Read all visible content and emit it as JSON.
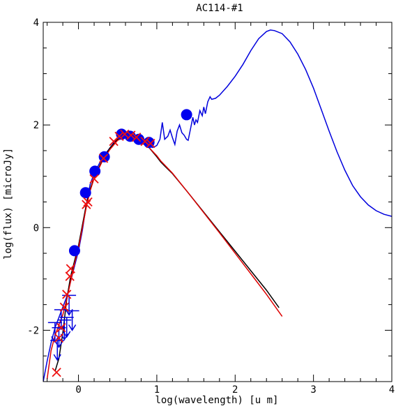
{
  "chart_data": {
    "type": "line",
    "title": "AC114-#1",
    "xlabel": "log(wavelength) [u m]",
    "ylabel": "log(flux) [microJy]",
    "xlim": [
      -0.45,
      4.0
    ],
    "ylim": [
      -3.0,
      4.0
    ],
    "x_ticks": [
      0,
      1,
      2,
      3,
      4
    ],
    "y_ticks": [
      -2,
      0,
      2,
      4
    ],
    "grid": false,
    "colors": {
      "model": "#0000dd",
      "photosphere_black": "#000000",
      "photosphere_red": "#dd0000",
      "points": "#0000ee",
      "crosses": "#ee1111"
    },
    "series": [
      {
        "color_key": "model",
        "points": [
          [
            -0.45,
            -3.0
          ],
          [
            -0.4,
            -2.6
          ],
          [
            -0.35,
            -2.25
          ],
          [
            -0.3,
            -1.95
          ],
          [
            -0.25,
            -1.75
          ],
          [
            -0.2,
            -1.55
          ],
          [
            -0.15,
            -1.35
          ],
          [
            -0.1,
            -1.05
          ],
          [
            -0.05,
            -0.75
          ],
          [
            0.0,
            -0.45
          ],
          [
            0.05,
            -0.05
          ],
          [
            0.1,
            0.45
          ],
          [
            0.15,
            0.85
          ],
          [
            0.2,
            1.05
          ],
          [
            0.3,
            1.35
          ],
          [
            0.4,
            1.55
          ],
          [
            0.5,
            1.75
          ],
          [
            0.55,
            1.8
          ],
          [
            0.6,
            1.8
          ],
          [
            0.7,
            1.75
          ],
          [
            0.8,
            1.66
          ],
          [
            0.9,
            1.58
          ],
          [
            0.95,
            1.56
          ],
          [
            1.0,
            1.6
          ],
          [
            1.04,
            1.72
          ],
          [
            1.07,
            2.05
          ],
          [
            1.1,
            1.72
          ],
          [
            1.14,
            1.78
          ],
          [
            1.17,
            1.9
          ],
          [
            1.2,
            1.75
          ],
          [
            1.23,
            1.62
          ],
          [
            1.26,
            1.88
          ],
          [
            1.29,
            2.0
          ],
          [
            1.32,
            1.85
          ],
          [
            1.35,
            1.8
          ],
          [
            1.38,
            1.72
          ],
          [
            1.4,
            1.7
          ],
          [
            1.43,
            1.92
          ],
          [
            1.46,
            2.15
          ],
          [
            1.48,
            2.0
          ],
          [
            1.5,
            2.1
          ],
          [
            1.52,
            2.05
          ],
          [
            1.55,
            2.28
          ],
          [
            1.58,
            2.18
          ],
          [
            1.6,
            2.35
          ],
          [
            1.62,
            2.22
          ],
          [
            1.65,
            2.45
          ],
          [
            1.68,
            2.55
          ],
          [
            1.7,
            2.5
          ],
          [
            1.75,
            2.52
          ],
          [
            1.8,
            2.58
          ],
          [
            1.9,
            2.75
          ],
          [
            2.0,
            2.95
          ],
          [
            2.1,
            3.18
          ],
          [
            2.2,
            3.45
          ],
          [
            2.3,
            3.68
          ],
          [
            2.4,
            3.82
          ],
          [
            2.45,
            3.85
          ],
          [
            2.5,
            3.84
          ],
          [
            2.6,
            3.78
          ],
          [
            2.7,
            3.62
          ],
          [
            2.8,
            3.38
          ],
          [
            2.9,
            3.08
          ],
          [
            3.0,
            2.72
          ],
          [
            3.1,
            2.3
          ],
          [
            3.2,
            1.88
          ],
          [
            3.3,
            1.48
          ],
          [
            3.4,
            1.12
          ],
          [
            3.5,
            0.82
          ],
          [
            3.6,
            0.6
          ],
          [
            3.7,
            0.44
          ],
          [
            3.8,
            0.33
          ],
          [
            3.9,
            0.26
          ],
          [
            4.0,
            0.22
          ]
        ]
      },
      {
        "color_key": "photosphere_black",
        "points": [
          [
            -0.3,
            -2.8
          ],
          [
            -0.25,
            -2.55
          ],
          [
            -0.2,
            -2.05
          ],
          [
            -0.15,
            -1.4
          ],
          [
            -0.1,
            -0.95
          ],
          [
            -0.05,
            -0.65
          ],
          [
            0.0,
            -0.35
          ],
          [
            0.05,
            0.05
          ],
          [
            0.1,
            0.45
          ],
          [
            0.15,
            0.75
          ],
          [
            0.2,
            0.98
          ],
          [
            0.3,
            1.3
          ],
          [
            0.4,
            1.55
          ],
          [
            0.5,
            1.72
          ],
          [
            0.6,
            1.78
          ],
          [
            0.7,
            1.74
          ],
          [
            0.8,
            1.66
          ],
          [
            0.9,
            1.56
          ],
          [
            1.0,
            1.38
          ],
          [
            1.05,
            1.28
          ],
          [
            1.1,
            1.2
          ],
          [
            1.2,
            1.05
          ],
          [
            1.4,
            0.68
          ],
          [
            1.6,
            0.3
          ],
          [
            1.8,
            -0.08
          ],
          [
            2.0,
            -0.46
          ],
          [
            2.2,
            -0.84
          ],
          [
            2.4,
            -1.22
          ],
          [
            2.56,
            -1.56
          ]
        ]
      },
      {
        "color_key": "photosphere_red",
        "points": [
          [
            -0.4,
            -2.95
          ],
          [
            -0.35,
            -2.4
          ],
          [
            -0.3,
            -2.1
          ],
          [
            -0.25,
            -1.9
          ],
          [
            -0.2,
            -1.7
          ],
          [
            -0.15,
            -1.4
          ],
          [
            -0.1,
            -1.05
          ],
          [
            -0.05,
            -0.7
          ],
          [
            0.0,
            -0.4
          ],
          [
            0.05,
            0.0
          ],
          [
            0.1,
            0.4
          ],
          [
            0.15,
            0.72
          ],
          [
            0.2,
            0.96
          ],
          [
            0.3,
            1.28
          ],
          [
            0.4,
            1.52
          ],
          [
            0.5,
            1.7
          ],
          [
            0.6,
            1.78
          ],
          [
            0.7,
            1.74
          ],
          [
            0.8,
            1.66
          ],
          [
            0.9,
            1.56
          ],
          [
            1.0,
            1.4
          ],
          [
            1.05,
            1.3
          ],
          [
            1.1,
            1.22
          ],
          [
            1.2,
            1.06
          ],
          [
            1.4,
            0.68
          ],
          [
            1.6,
            0.29
          ],
          [
            1.8,
            -0.1
          ],
          [
            2.0,
            -0.5
          ],
          [
            2.2,
            -0.9
          ],
          [
            2.4,
            -1.3
          ],
          [
            2.6,
            -1.73
          ]
        ]
      }
    ],
    "data_points": [
      [
        -0.05,
        -0.45
      ],
      [
        0.09,
        0.68
      ],
      [
        0.21,
        1.1
      ],
      [
        0.33,
        1.38
      ],
      [
        0.55,
        1.82
      ],
      [
        0.66,
        1.78
      ],
      [
        0.77,
        1.72
      ],
      [
        0.9,
        1.66
      ],
      [
        1.38,
        2.2
      ]
    ],
    "crosses": [
      [
        -0.28,
        -2.82
      ],
      [
        -0.25,
        -2.15
      ],
      [
        -0.22,
        -1.95
      ],
      [
        -0.18,
        -1.55
      ],
      [
        -0.15,
        -1.3
      ],
      [
        -0.11,
        -0.95
      ],
      [
        -0.1,
        -0.8
      ],
      [
        0.1,
        0.45
      ],
      [
        0.12,
        0.5
      ],
      [
        0.2,
        0.95
      ],
      [
        0.32,
        1.35
      ],
      [
        0.45,
        1.68
      ],
      [
        0.52,
        1.78
      ],
      [
        0.59,
        1.82
      ],
      [
        0.67,
        1.8
      ],
      [
        0.74,
        1.76
      ],
      [
        0.85,
        1.68
      ],
      [
        0.92,
        1.64
      ]
    ],
    "upper_limits": [
      [
        -0.3,
        -1.85
      ],
      [
        -0.25,
        -1.95
      ],
      [
        -0.22,
        -1.6
      ],
      [
        -0.18,
        -1.8
      ],
      [
        -0.15,
        -1.75
      ],
      [
        -0.12,
        -1.32
      ],
      [
        -0.08,
        -1.62
      ],
      [
        -0.27,
        -2.2
      ]
    ]
  }
}
